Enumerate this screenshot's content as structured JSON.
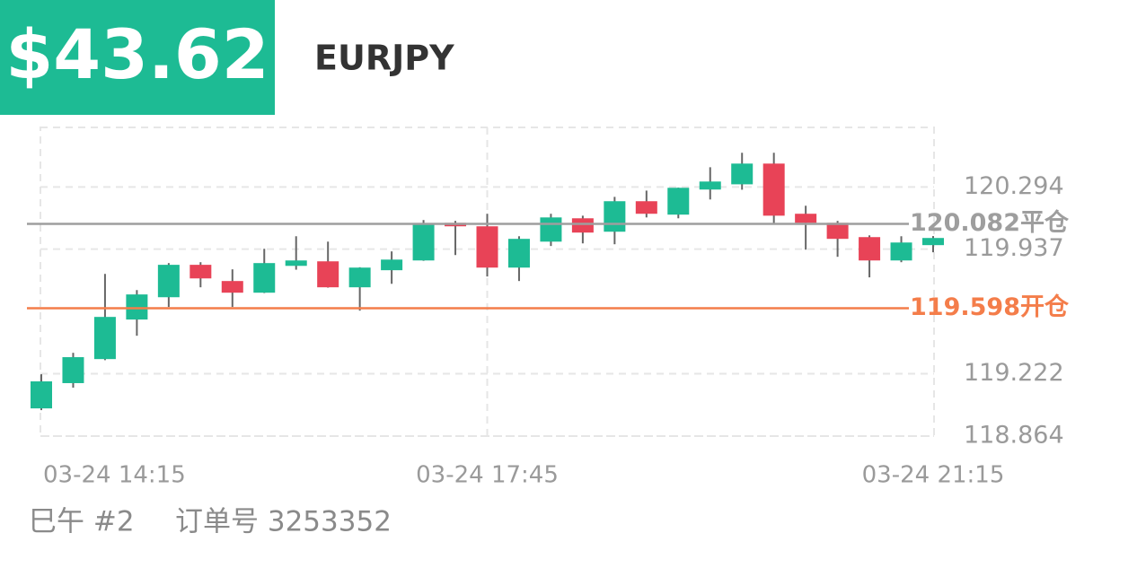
{
  "header": {
    "balance": "$43.62",
    "symbol": "EURJPY"
  },
  "chart_data": {
    "type": "candlestick",
    "categories": [
      "03-24 14:15",
      null,
      null,
      null,
      null,
      null,
      null,
      null,
      null,
      null,
      null,
      null,
      null,
      null,
      "03-24 17:45",
      null,
      null,
      null,
      null,
      null,
      null,
      null,
      null,
      null,
      null,
      null,
      null,
      null,
      "03-24 21:15"
    ],
    "open": [
      119.023,
      119.168,
      119.306,
      119.533,
      119.661,
      119.847,
      119.754,
      119.687,
      119.841,
      119.867,
      119.718,
      119.816,
      119.872,
      120.088,
      120.068,
      119.831,
      119.98,
      120.114,
      120.037,
      120.212,
      120.135,
      120.279,
      120.309,
      120.428,
      120.14,
      120.088,
      120.006,
      119.872,
      119.96
    ],
    "high": [
      119.219,
      119.342,
      119.795,
      119.702,
      119.857,
      119.862,
      119.821,
      119.939,
      120.011,
      119.98,
      119.833,
      119.924,
      120.104,
      120.099,
      120.14,
      120.011,
      120.14,
      120.129,
      120.237,
      120.273,
      120.29,
      120.407,
      120.49,
      120.49,
      120.186,
      120.099,
      120.016,
      120.011,
      120.012
    ],
    "low": [
      119.013,
      119.142,
      119.3,
      119.44,
      119.605,
      119.718,
      119.605,
      119.685,
      119.819,
      119.716,
      119.584,
      119.738,
      119.87,
      119.903,
      119.78,
      119.754,
      119.955,
      119.97,
      119.965,
      120.119,
      120.114,
      120.222,
      120.278,
      120.078,
      119.934,
      119.893,
      119.775,
      119.862,
      119.919
    ],
    "close": [
      119.178,
      119.317,
      119.548,
      119.677,
      119.847,
      119.769,
      119.687,
      119.857,
      119.872,
      119.718,
      119.831,
      119.877,
      120.078,
      120.068,
      119.831,
      119.996,
      120.119,
      120.032,
      120.212,
      120.14,
      120.289,
      120.325,
      120.428,
      120.129,
      120.088,
      119.996,
      119.872,
      119.975,
      120.001
    ],
    "up_color": "#1dbb94",
    "down_color": "#e84357",
    "ylim": [
      118.864,
      120.651
    ],
    "yticks": [
      118.864,
      119.222,
      119.937,
      120.294
    ],
    "grid": true,
    "reference_lines": [
      {
        "value": 120.082,
        "label": "120.082平仓",
        "color": "#9e9e9e"
      },
      {
        "value": 119.598,
        "label": "119.598开仓",
        "color": "#f47d4a"
      }
    ]
  },
  "footer": {
    "period": "巳午 #2",
    "order": "订单号 3253352"
  }
}
